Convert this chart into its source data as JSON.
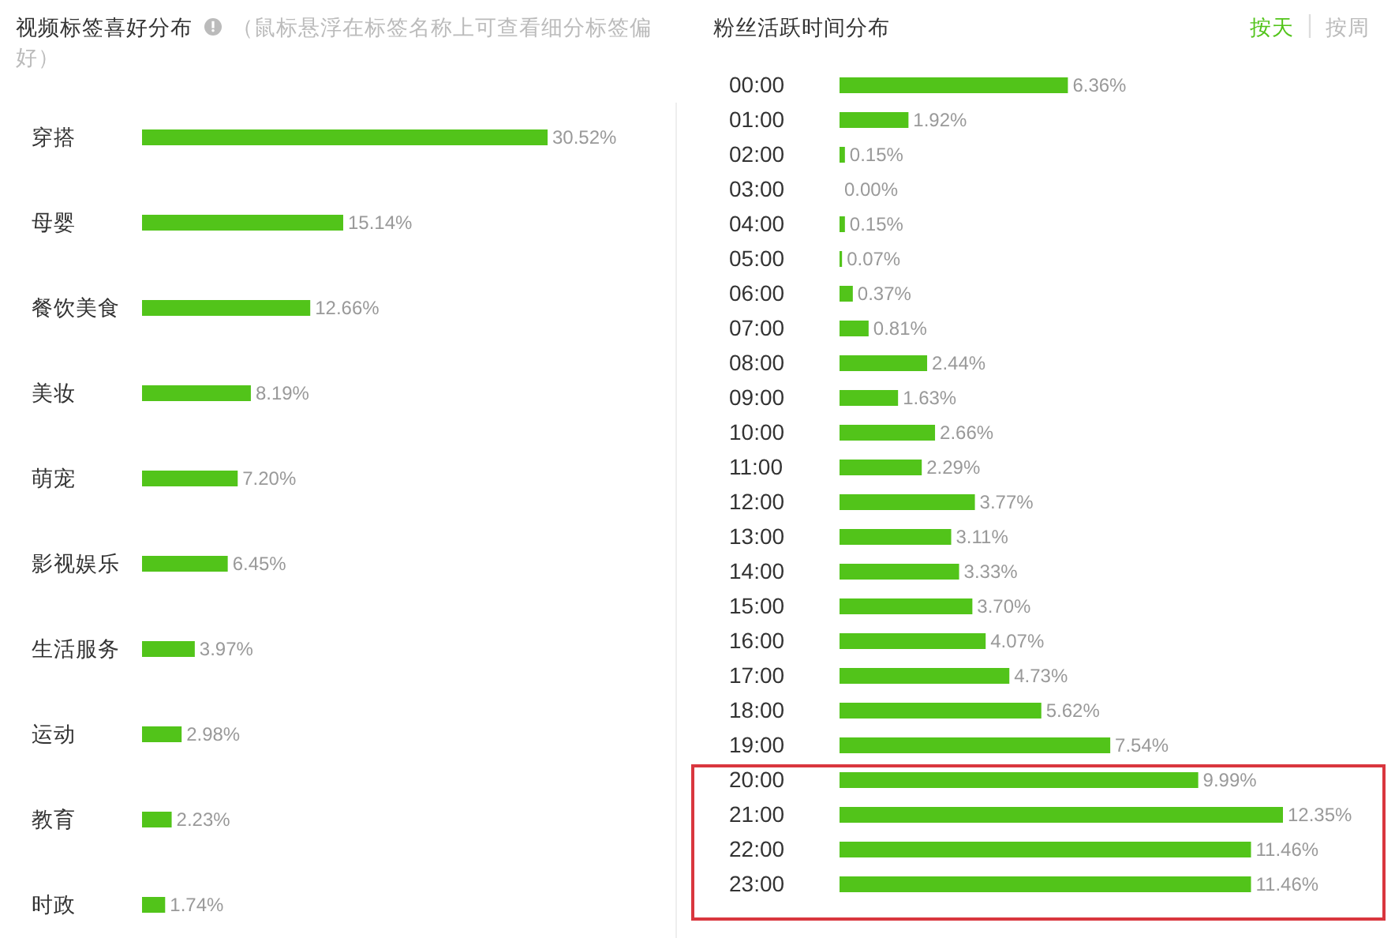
{
  "chart_data": [
    {
      "type": "bar",
      "orientation": "horizontal",
      "title": "视频标签喜好分布",
      "subtitle": "（鼠标悬浮在标签名称上可查看细分标签偏好）",
      "categories": [
        "穿搭",
        "母婴",
        "餐饮美食",
        "美妆",
        "萌宠",
        "影视娱乐",
        "生活服务",
        "运动",
        "教育",
        "时政"
      ],
      "values": [
        30.52,
        15.14,
        12.66,
        8.19,
        7.2,
        6.45,
        3.97,
        2.98,
        2.23,
        1.74
      ],
      "value_labels": [
        "30.52%",
        "15.14%",
        "12.66%",
        "8.19%",
        "7.20%",
        "6.45%",
        "3.97%",
        "2.98%",
        "2.23%",
        "1.74%"
      ],
      "color": "#52c41a"
    },
    {
      "type": "bar",
      "orientation": "horizontal",
      "title": "粉丝活跃时间分布",
      "annotations": [
        "按天",
        "按周"
      ],
      "categories": [
        "00:00",
        "01:00",
        "02:00",
        "03:00",
        "04:00",
        "05:00",
        "06:00",
        "07:00",
        "08:00",
        "09:00",
        "10:00",
        "11:00",
        "12:00",
        "13:00",
        "14:00",
        "15:00",
        "16:00",
        "17:00",
        "18:00",
        "19:00",
        "20:00",
        "21:00",
        "22:00",
        "23:00"
      ],
      "values": [
        6.36,
        1.92,
        0.15,
        0.0,
        0.15,
        0.07,
        0.37,
        0.81,
        2.44,
        1.63,
        2.66,
        2.29,
        3.77,
        3.11,
        3.33,
        3.7,
        4.07,
        4.73,
        5.62,
        7.54,
        9.99,
        12.35,
        11.46,
        11.46
      ],
      "value_labels": [
        "6.36%",
        "1.92%",
        "0.15%",
        "0.00%",
        "0.15%",
        "0.07%",
        "0.37%",
        "0.81%",
        "2.44%",
        "1.63%",
        "2.66%",
        "2.29%",
        "3.77%",
        "3.11%",
        "3.33%",
        "3.70%",
        "4.07%",
        "4.73%",
        "5.62%",
        "7.54%",
        "9.99%",
        "12.35%",
        "11.46%",
        "11.46%"
      ],
      "color": "#52c41a"
    }
  ]
}
